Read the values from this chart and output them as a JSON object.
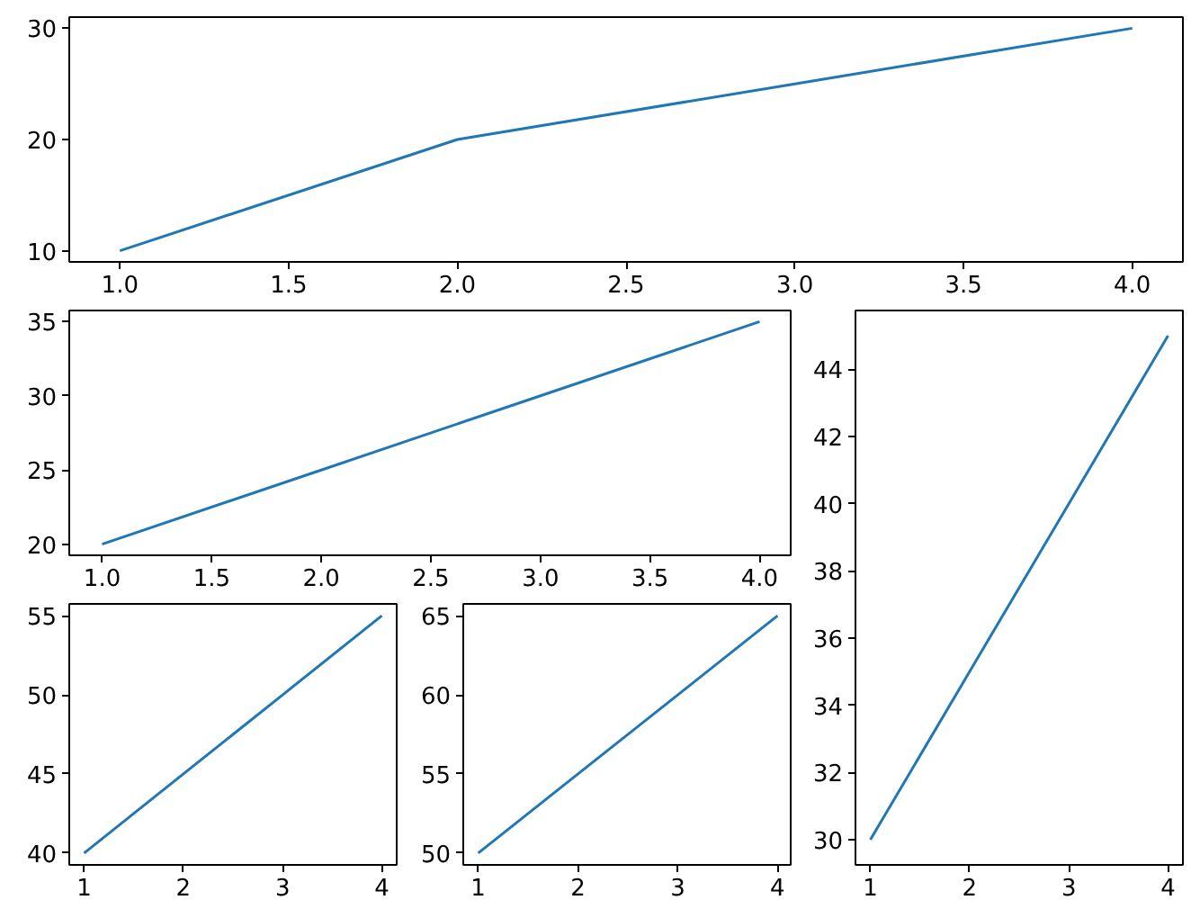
{
  "chart_data": [
    {
      "type": "line",
      "x": [
        1,
        2,
        3,
        4
      ],
      "series": [
        {
          "color": "#1f77b4",
          "values": [
            10,
            20,
            25,
            30
          ]
        }
      ],
      "xlim": [
        0.85,
        4.15
      ],
      "ylim": [
        9,
        31
      ],
      "xticks": [
        {
          "value": 1,
          "label": "1.0"
        },
        1.5,
        {
          "value": 2,
          "label": "2.0"
        },
        2.5,
        {
          "value": 3,
          "label": "3.0"
        },
        3.5,
        {
          "value": 4,
          "label": "4.0"
        }
      ],
      "yticks": [
        10,
        20,
        30
      ],
      "grid": false
    },
    {
      "type": "line",
      "x": [
        1,
        2,
        3,
        4
      ],
      "series": [
        {
          "color": "#1f77b4",
          "values": [
            20,
            25,
            30,
            35
          ]
        }
      ],
      "xlim": [
        0.85,
        4.15
      ],
      "ylim": [
        19.25,
        35.75
      ],
      "xticks": [
        {
          "value": 1,
          "label": "1.0"
        },
        1.5,
        {
          "value": 2,
          "label": "2.0"
        },
        2.5,
        {
          "value": 3,
          "label": "3.0"
        },
        3.5,
        {
          "value": 4,
          "label": "4.0"
        }
      ],
      "yticks": [
        20,
        25,
        30,
        35
      ],
      "grid": false
    },
    {
      "type": "line",
      "x": [
        1,
        2,
        3,
        4
      ],
      "series": [
        {
          "color": "#1f77b4",
          "values": [
            30,
            35,
            40,
            45
          ]
        }
      ],
      "xlim": [
        0.85,
        4.15
      ],
      "ylim": [
        29.25,
        45.75
      ],
      "xticks": [
        1,
        2,
        3,
        4
      ],
      "yticks": [
        30,
        32,
        34,
        36,
        38,
        40,
        42,
        44
      ],
      "grid": false
    },
    {
      "type": "line",
      "x": [
        1,
        2,
        3,
        4
      ],
      "series": [
        {
          "color": "#1f77b4",
          "values": [
            40,
            45,
            50,
            55
          ]
        }
      ],
      "xlim": [
        0.85,
        4.15
      ],
      "ylim": [
        39.25,
        55.75
      ],
      "xticks": [
        1,
        2,
        3,
        4
      ],
      "yticks": [
        40,
        45,
        50,
        55
      ],
      "grid": false
    },
    {
      "type": "line",
      "x": [
        1,
        2,
        3,
        4
      ],
      "series": [
        {
          "color": "#1f77b4",
          "values": [
            50,
            55,
            60,
            65
          ]
        }
      ],
      "xlim": [
        0.85,
        4.15
      ],
      "ylim": [
        49.25,
        65.75
      ],
      "xticks": [
        1,
        2,
        3,
        4
      ],
      "yticks": [
        50,
        55,
        60,
        65
      ],
      "grid": false
    }
  ]
}
